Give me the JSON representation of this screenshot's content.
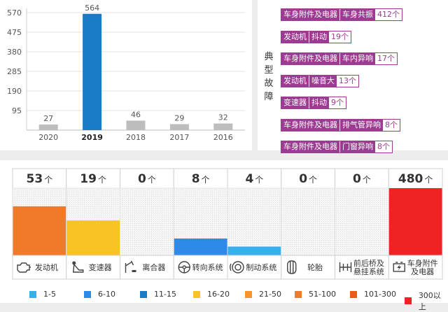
{
  "year_chart": {
    "type": "bar",
    "categories": [
      "2020",
      "2019",
      "2018",
      "2017",
      "2016"
    ],
    "values": [
      27,
      564,
      46,
      29,
      32
    ],
    "ylim": [
      0,
      570
    ],
    "yticks": [
      95,
      190,
      285,
      380,
      475,
      570
    ],
    "highlight": "2019",
    "colors": {
      "bar": "#bdbdbd",
      "highlight": "#1a7cc4"
    },
    "grid": true
  },
  "faults": {
    "title": "典型故障",
    "items": [
      {
        "system": "车身附件及电器",
        "symptom": "车身共振",
        "count": "412个"
      },
      {
        "system": "发动机",
        "symptom": "抖动",
        "count": "19个"
      },
      {
        "system": "车身附件及电器",
        "symptom": "车内异响",
        "count": "17个"
      },
      {
        "system": "发动机",
        "symptom": "噪音大",
        "count": "13个"
      },
      {
        "system": "变速器",
        "symptom": "抖动",
        "count": "9个"
      },
      {
        "system": "车身附件及电器",
        "symptom": "排气管异响",
        "count": "8个"
      },
      {
        "system": "车身附件及电器",
        "symptom": "门窗异响",
        "count": "8个"
      }
    ]
  },
  "chart_data": [
    {
      "type": "bar",
      "categories": [
        "2020",
        "2019",
        "2018",
        "2017",
        "2016"
      ],
      "values": [
        27,
        564,
        46,
        29,
        32
      ],
      "ylim": [
        0,
        570
      ]
    },
    {
      "type": "bar",
      "categories": [
        "发动机",
        "变速器",
        "离合器",
        "转向系统",
        "制动系统",
        "轮胎",
        "前后桥及悬挂系统",
        "车身附件及电器"
      ],
      "values": [
        53,
        19,
        0,
        8,
        4,
        0,
        0,
        480
      ],
      "unit": "个",
      "level_fraction": [
        0.73,
        0.52,
        0,
        0.25,
        0.13,
        0,
        0,
        1.0
      ],
      "colors": [
        "#f07a28",
        "#f9c326",
        null,
        "#2e89e8",
        "#38aeef",
        null,
        null,
        "#ef2323"
      ]
    }
  ],
  "system_chart": {
    "unit": "个",
    "items": [
      {
        "count": "53",
        "label": "发动机",
        "icon": "engine-icon",
        "level": 0.73,
        "color": "#f07a28"
      },
      {
        "count": "19",
        "label": "变速器",
        "icon": "gear-shift-icon",
        "level": 0.52,
        "color": "#f9c326"
      },
      {
        "count": "0",
        "label": "离合器",
        "icon": "clutch-pedal-icon",
        "level": 0,
        "color": ""
      },
      {
        "count": "8",
        "label": "转向系统",
        "icon": "steering-wheel-icon",
        "level": 0.25,
        "color": "#2e89e8"
      },
      {
        "count": "4",
        "label": "制动系统",
        "icon": "brake-disc-icon",
        "level": 0.13,
        "color": "#38aeef"
      },
      {
        "count": "0",
        "label": "轮胎",
        "icon": "tire-icon",
        "level": 0,
        "color": ""
      },
      {
        "count": "0",
        "label": "前后桥及\n悬挂系统",
        "icon": "suspension-icon",
        "level": 0,
        "color": ""
      },
      {
        "count": "480",
        "label": "车身附件\n及电器",
        "icon": "battery-icon",
        "level": 1.0,
        "color": "#ef2323"
      }
    ]
  },
  "legend": [
    {
      "label": "1-5",
      "color": "#38aeef"
    },
    {
      "label": "6-10",
      "color": "#2e89e8"
    },
    {
      "label": "11-15",
      "color": "#1a7cc4"
    },
    {
      "label": "16-20",
      "color": "#f9c326"
    },
    {
      "label": "21-50",
      "color": "#f7932b"
    },
    {
      "label": "51-100",
      "color": "#f07a28"
    },
    {
      "label": "101-300",
      "color": "#ec5a1f"
    },
    {
      "label": "300以上",
      "color": "#ef2323"
    }
  ]
}
